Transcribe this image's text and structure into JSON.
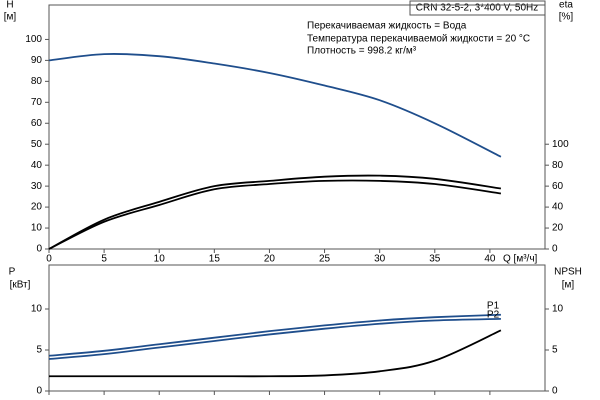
{
  "chart_data": [
    {
      "type": "line",
      "title": "CRN 32-5-2, 3*400 V, 50Hz",
      "annotations": [
        "Перекачиваемая жидкость = Вода",
        "Температура перекачиваемой жидкости = 20 °C",
        "Плотность = 998.2 кг/м³"
      ],
      "ylabel": "H",
      "yunit": "[м]",
      "y2label": "eta",
      "y2unit": "[%]",
      "xlabel": "Q [м³/ч]",
      "xlim": [
        0,
        45
      ],
      "xticks": [
        0,
        5,
        10,
        15,
        20,
        25,
        30,
        35,
        40
      ],
      "ylim": [
        0,
        115
      ],
      "yticks": [
        0,
        10,
        20,
        30,
        40,
        50,
        60,
        70,
        80,
        90,
        100
      ],
      "y2lim": [
        0,
        230
      ],
      "y2ticks": [
        0,
        20,
        40,
        60,
        80,
        100
      ],
      "x": [
        0,
        5,
        10,
        15,
        20,
        25,
        30,
        35,
        41
      ],
      "series": [
        {
          "color": "#1f4e8c",
          "values": [
            90,
            93,
            92,
            88.5,
            84,
            78,
            71,
            60,
            44
          ]
        },
        {
          "color": "#000000",
          "axis": "y2",
          "values": [
            0,
            28,
            45,
            60,
            65,
            69,
            70,
            67,
            57.7
          ]
        },
        {
          "color": "#000000",
          "axis": "y2",
          "values": [
            0,
            26,
            42,
            57,
            62,
            65,
            65,
            62,
            53
          ]
        }
      ]
    },
    {
      "type": "line",
      "ylabel": "P",
      "yunit": "[кВт]",
      "y2label": "NPSH",
      "y2unit": "[м]",
      "xlim": [
        0,
        45
      ],
      "xticks": [
        0,
        5,
        10,
        15,
        20,
        25,
        30,
        35,
        40
      ],
      "ylim": [
        0,
        15
      ],
      "yticks": [
        0,
        5,
        10
      ],
      "y2lim": [
        0,
        15
      ],
      "y2ticks": [
        0,
        5,
        10
      ],
      "x": [
        0,
        5,
        10,
        15,
        20,
        25,
        30,
        35,
        41
      ],
      "series": [
        {
          "name": "P1",
          "color": "#1f4e8c",
          "values": [
            4.3,
            4.9,
            5.7,
            6.5,
            7.3,
            8.0,
            8.6,
            9.0,
            9.3
          ]
        },
        {
          "name": "P2",
          "color": "#1f4e8c",
          "values": [
            3.9,
            4.5,
            5.3,
            6.1,
            6.9,
            7.6,
            8.2,
            8.6,
            8.8
          ]
        },
        {
          "color": "#000000",
          "axis": "y2",
          "values": [
            1.8,
            1.8,
            1.8,
            1.8,
            1.8,
            1.9,
            2.4,
            3.7,
            7.4
          ]
        }
      ]
    }
  ]
}
